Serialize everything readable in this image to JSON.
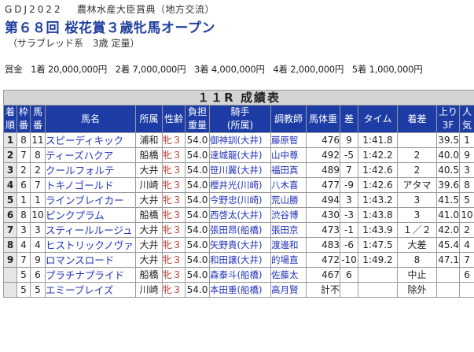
{
  "header": {
    "org": "GDJ2022",
    "series": "農林水産大臣賞典（地方交流）",
    "race_title": "第６８回 桜花賞３歳牝馬オープン",
    "condition": "（サラブレッド系　3歳 定量）"
  },
  "prize": {
    "label": "賞金",
    "items": [
      "1着 20,000,000円",
      "2着 7,000,000円",
      "3着 4,000,000円",
      "4着 2,000,000円",
      "5着 1,000,000円"
    ]
  },
  "table": {
    "title": "１１R 成績表",
    "headers": {
      "rank": [
        "着",
        "順"
      ],
      "waku": [
        "枠",
        "番"
      ],
      "uma": [
        "馬",
        "番"
      ],
      "name": "馬名",
      "belong": "所属",
      "sex": "性齢",
      "weight": [
        "負担",
        "重量"
      ],
      "jockey": [
        "騎手",
        "(所属)"
      ],
      "trainer": "調教師",
      "body": "馬体重",
      "diff": "差",
      "time": "タイム",
      "margin": "着差",
      "f3": [
        "上り",
        "3F"
      ],
      "pop": [
        "人",
        "気"
      ]
    },
    "rows": [
      {
        "rank": "1",
        "waku": "8",
        "uma": "11",
        "name": "スピーディキック",
        "belong": "浦和",
        "sex": "牝３",
        "weight": "54.0",
        "jockey": "御神訓(大井)",
        "trainer": "藤原智",
        "body": "476",
        "diff": "9",
        "time": "1:41.8",
        "margin": "",
        "f3": "39.5",
        "pop": "1"
      },
      {
        "rank": "2",
        "waku": "7",
        "uma": "8",
        "name": "ティーズハクア",
        "belong": "船橋",
        "sex": "牝３",
        "weight": "54.0",
        "jockey": "達城龍(大井)",
        "trainer": "山中尊",
        "body": "492",
        "diff": "-5",
        "time": "1:42.2",
        "margin": "2",
        "f3": "40.0",
        "pop": "9"
      },
      {
        "rank": "3",
        "waku": "2",
        "uma": "2",
        "name": "クールフォルテ",
        "belong": "大井",
        "sex": "牝３",
        "weight": "54.0",
        "jockey": "笹川翼(大井)",
        "trainer": "福田真",
        "body": "489",
        "diff": "7",
        "time": "1:42.6",
        "margin": "2",
        "f3": "40.5",
        "pop": "3"
      },
      {
        "rank": "4",
        "waku": "6",
        "uma": "7",
        "name": "トキノゴールド",
        "belong": "川崎",
        "sex": "牝３",
        "weight": "54.0",
        "jockey": "櫻井光(川崎)",
        "trainer": "八木喜",
        "body": "477",
        "diff": "-9",
        "time": "1:42.6",
        "margin": "アタマ",
        "f3": "39.6",
        "pop": "8"
      },
      {
        "rank": "5",
        "waku": "1",
        "uma": "1",
        "name": "ラインブレイカー",
        "belong": "大井",
        "sex": "牝３",
        "weight": "54.0",
        "jockey": "今野忠(川崎)",
        "trainer": "荒山勝",
        "body": "494",
        "diff": "3",
        "time": "1:43.2",
        "margin": "3",
        "f3": "41.5",
        "pop": "5"
      },
      {
        "rank": "6",
        "waku": "8",
        "uma": "10",
        "name": "ピンクプラム",
        "belong": "船橋",
        "sex": "牝３",
        "weight": "54.0",
        "jockey": "西啓太(大井)",
        "trainer": "渋谷博",
        "body": "430",
        "diff": "-3",
        "time": "1:43.8",
        "margin": "3",
        "f3": "41.0",
        "pop": "10"
      },
      {
        "rank": "7",
        "waku": "3",
        "uma": "3",
        "name": "スティールルージュ",
        "belong": "大井",
        "sex": "牝３",
        "weight": "54.0",
        "jockey": "張田昂(船橋)",
        "trainer": "張田京",
        "body": "473",
        "diff": "-1",
        "time": "1:43.9",
        "margin": "１／２",
        "f3": "42.0",
        "pop": "2"
      },
      {
        "rank": "8",
        "waku": "4",
        "uma": "4",
        "name": "ヒストリックノヴァ",
        "belong": "大井",
        "sex": "牝３",
        "weight": "54.0",
        "jockey": "矢野貴(大井)",
        "trainer": "渡邊和",
        "body": "483",
        "diff": "-6",
        "time": "1:47.5",
        "margin": "大差",
        "f3": "45.4",
        "pop": "4"
      },
      {
        "rank": "9",
        "waku": "7",
        "uma": "9",
        "name": "ロマンスロード",
        "belong": "大井",
        "sex": "牝３",
        "weight": "54.0",
        "jockey": "和田譲(大井)",
        "trainer": "的場直",
        "body": "472",
        "diff": "-10",
        "time": "1:49.2",
        "margin": "8",
        "f3": "47.1",
        "pop": "7"
      },
      {
        "rank": "",
        "waku": "5",
        "uma": "6",
        "name": "プラチナプライド",
        "belong": "船橋",
        "sex": "牝３",
        "weight": "54.0",
        "jockey": "森泰斗(船橋)",
        "trainer": "佐藤太",
        "body": "467",
        "diff": "6",
        "time": "",
        "margin": "中止",
        "f3": "",
        "pop": "6"
      },
      {
        "rank": "",
        "waku": "5",
        "uma": "5",
        "name": "エミーブレイズ",
        "belong": "川崎",
        "sex": "牝３",
        "weight": "54.0",
        "jockey": "本田重(船橋)",
        "trainer": "高月賢",
        "body": "計不",
        "diff": "",
        "time": "",
        "margin": "除外",
        "f3": "",
        "pop": ""
      }
    ]
  }
}
